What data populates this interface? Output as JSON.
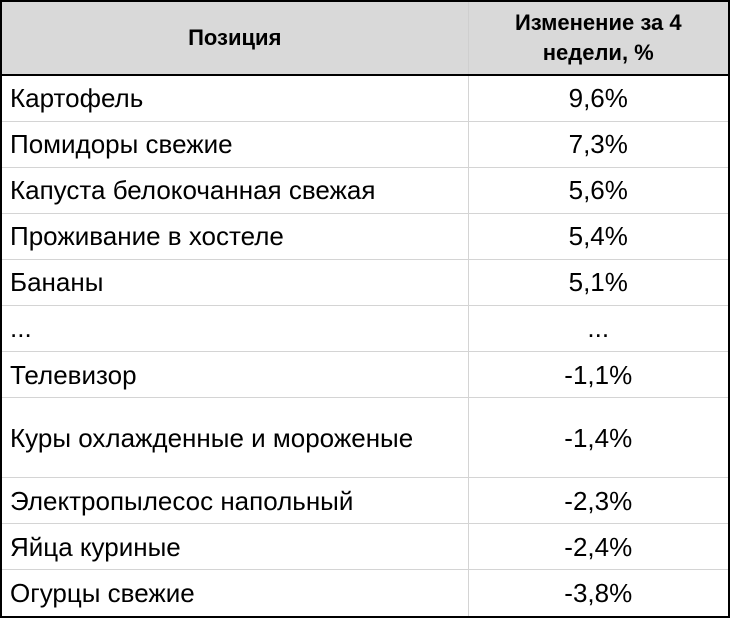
{
  "table": {
    "headers": {
      "position": "Позиция",
      "change": "Изменение за 4 недели, %"
    },
    "rows": [
      {
        "name": "Картофель",
        "change": "9,6%"
      },
      {
        "name": "Помидоры свежие",
        "change": "7,3%"
      },
      {
        "name": "Капуста белокочанная свежая",
        "change": "5,6%"
      },
      {
        "name": "Проживание в хостеле",
        "change": "5,4%"
      },
      {
        "name": "Бананы",
        "change": "5,1%"
      },
      {
        "name": "...",
        "change": "..."
      },
      {
        "name": "Телевизор",
        "change": "-1,1%"
      },
      {
        "name": "Куры охлажденные и мороженые",
        "change": "-1,4%"
      },
      {
        "name": "Электропылесос напольный",
        "change": "-2,3%"
      },
      {
        "name": "Яйца куриные",
        "change": "-2,4%"
      },
      {
        "name": "Огурцы свежие",
        "change": "-3,8%"
      }
    ]
  },
  "colors": {
    "header_background": "#d9d9d9",
    "border": "#000000",
    "grid_line": "#d4d4d4"
  }
}
